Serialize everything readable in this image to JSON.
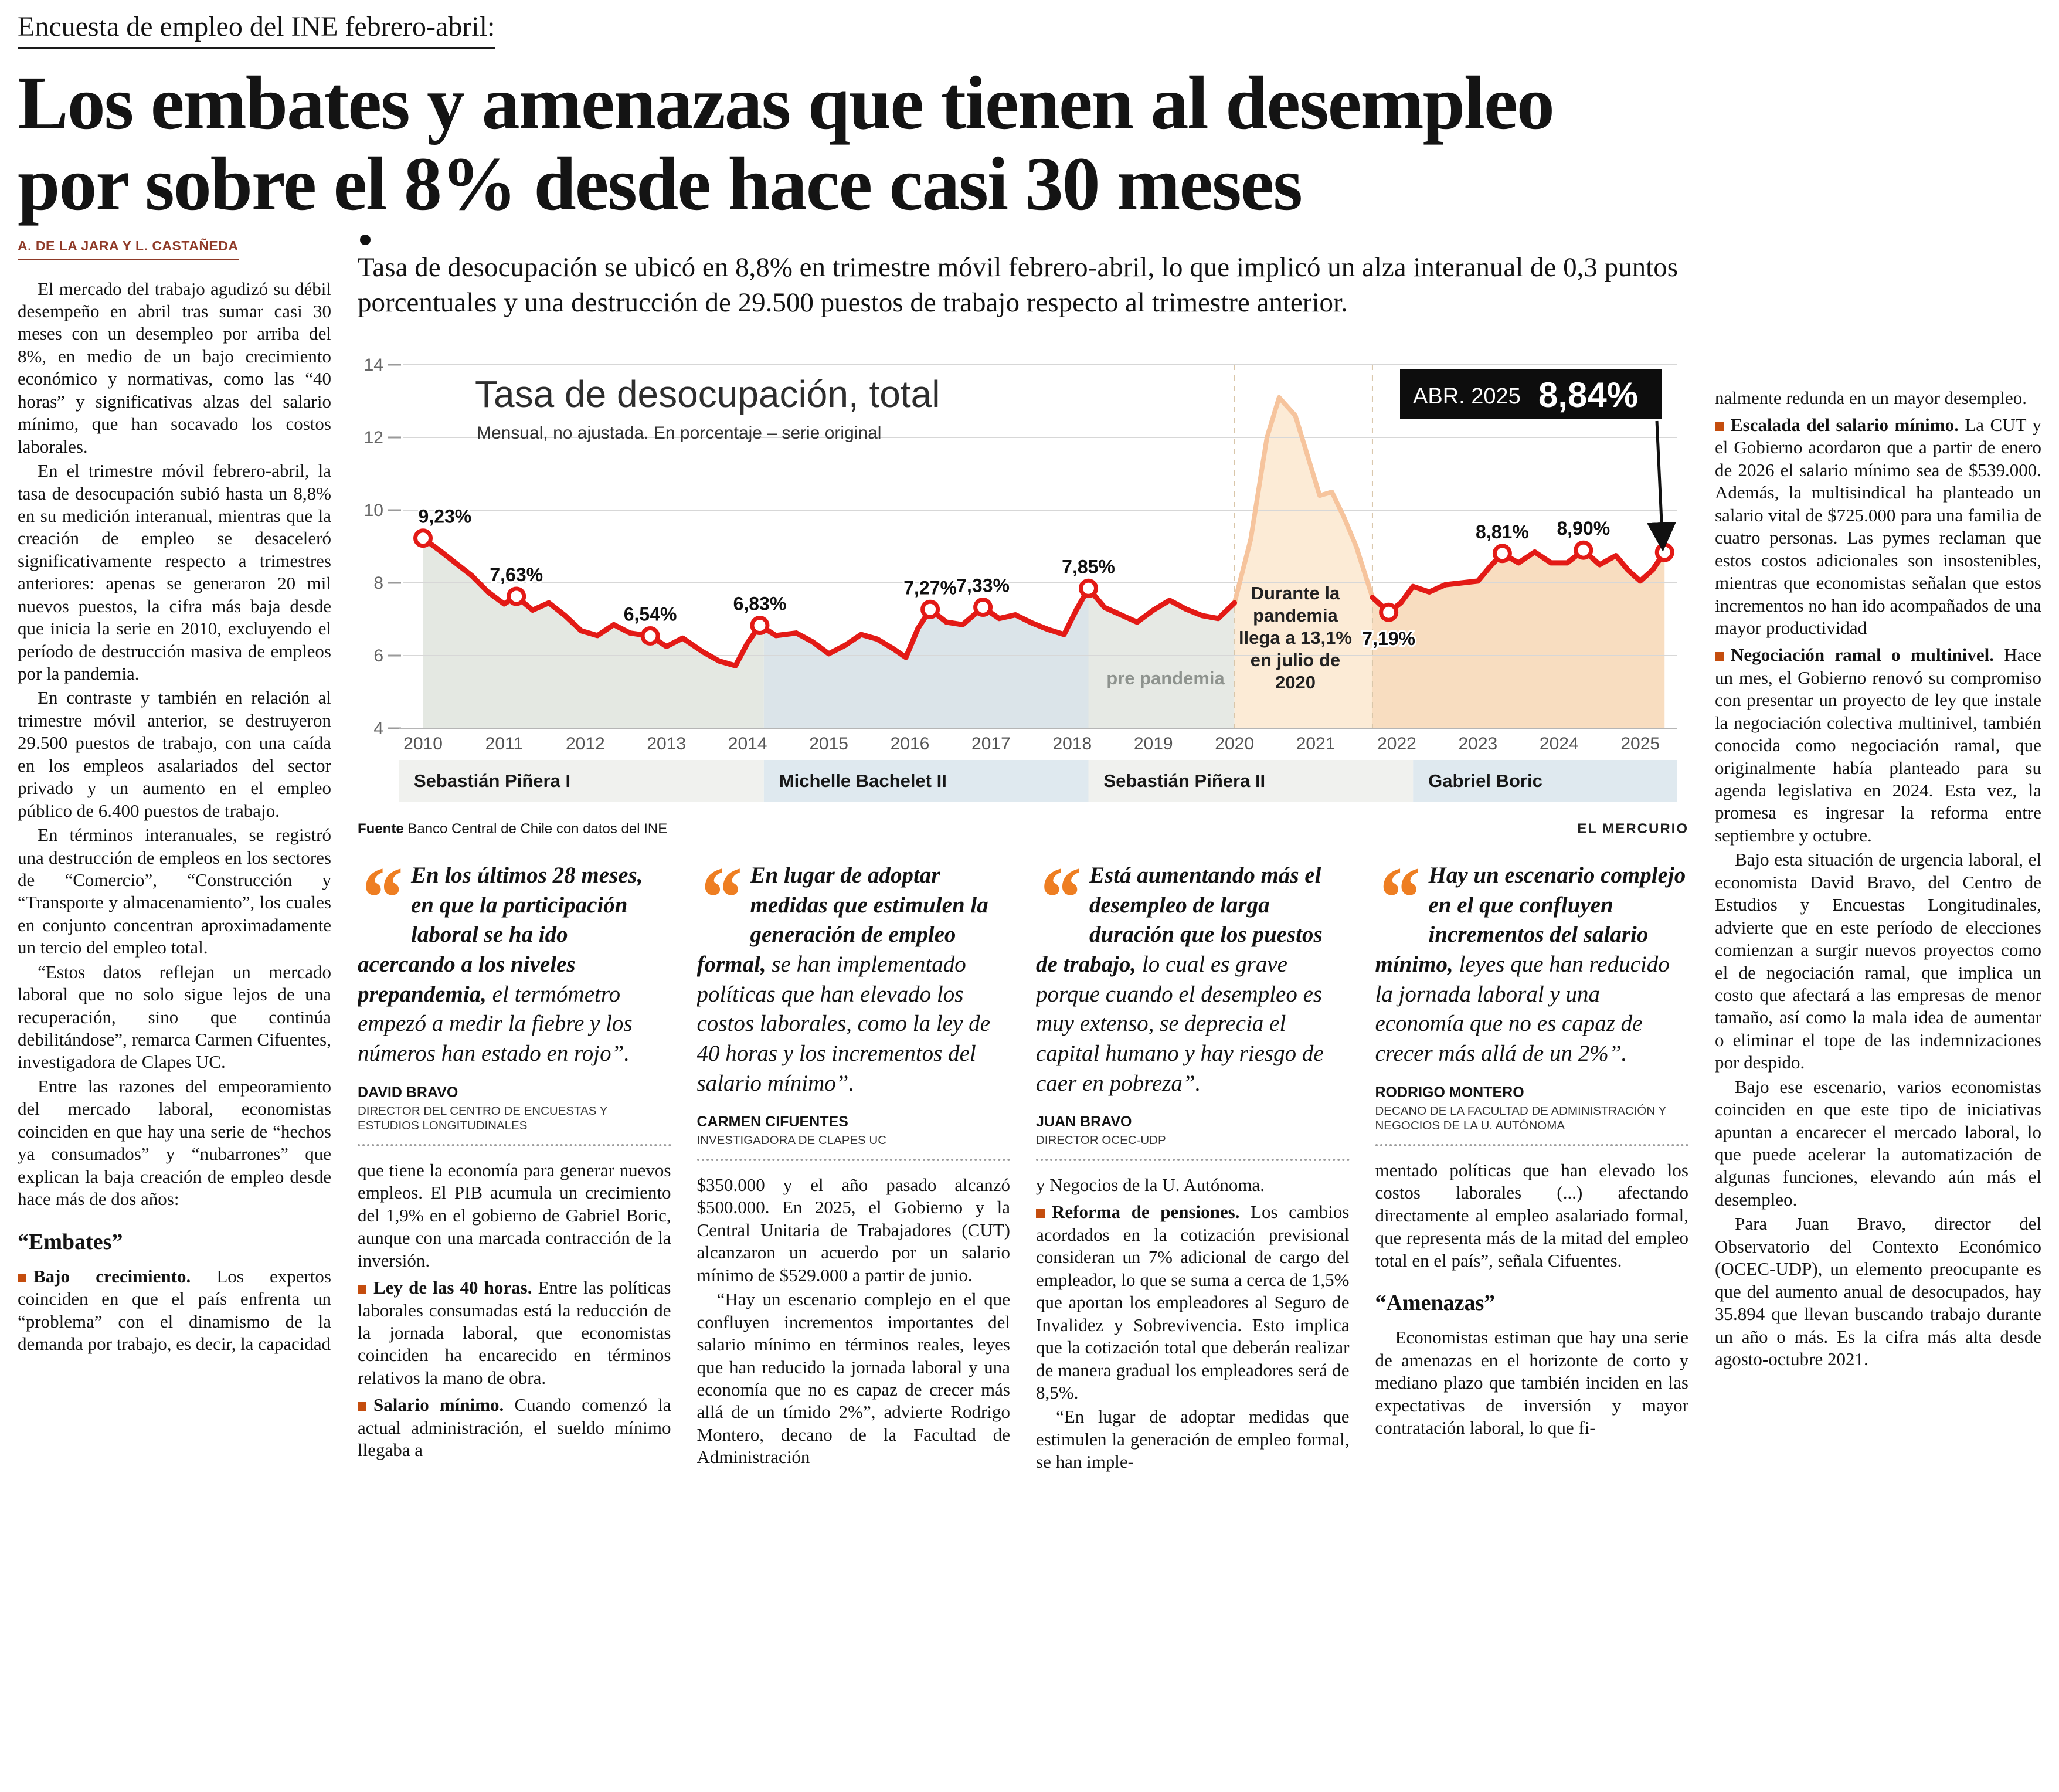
{
  "colors": {
    "accent": "#ee7e22",
    "bullet": "#c44d0e",
    "byline": "#8f3a28"
  },
  "quote_glyph": "“",
  "header": {
    "kicker": "Encuesta de empleo del INE febrero-abril:",
    "headline": "Los embates y amenazas que tienen al desempleo\npor sobre el 8% desde hace casi 30 meses",
    "byline": "A. DE LA JARA Y L. CASTAÑEDA",
    "lead": "Tasa de desocupación se ubicó en 8,8% en trimestre móvil febrero-abril, lo que implicó un alza interanual de 0,3 puntos porcentuales y una destrucción de 29.500 puestos de trabajo respecto al trimestre anterior."
  },
  "left_column": {
    "paragraphs": [
      {
        "t": "p",
        "text": "El mercado del trabajo agudizó su débil desempeño en abril tras sumar casi 30 meses con un desempleo por arriba del 8%, en medio de un bajo crecimiento económico y normativas, como las “40 horas” y significativas alzas del salario mínimo, que han socavado los costos laborales."
      },
      {
        "t": "p",
        "text": "En el trimestre móvil febrero-abril, la tasa de desocupación subió hasta un 8,8% en su medición interanual, mientras que la creación de empleo se desaceleró significativamente respecto a trimestres anteriores: apenas se generaron 20 mil nuevos puestos, la cifra más baja desde que inicia la serie en 2010, excluyendo el período de destrucción masiva de empleos por la pandemia."
      },
      {
        "t": "p",
        "text": "En contraste y también en relación al trimestre móvil anterior, se destruyeron 29.500 puestos de trabajo, con una caída en los empleos asalariados del sector privado y un aumento en el empleo público de 6.400 puestos de trabajo."
      },
      {
        "t": "p",
        "text": "En términos interanuales, se registró una destrucción de empleos en los sectores de “Comercio”, “Construcción y “Transporte y almacenamiento”, los cuales en conjunto concentran aproximadamente un tercio del empleo total."
      },
      {
        "t": "p",
        "text": "“Estos datos reflejan un mercado laboral que no solo sigue lejos de una recuperación, sino que continúa debilitándose”, remarca Carmen Cifuentes, investigadora de Clapes UC."
      },
      {
        "t": "p",
        "text": "Entre las razones del empeoramiento del mercado laboral, economistas coinciden en que hay una serie de “hechos ya consumados” y “nubarrones” que explican la baja creación de empleo desde hace más de dos años:"
      },
      {
        "t": "sub",
        "text": "“Embates”"
      },
      {
        "t": "b",
        "lead": "Bajo crecimiento.",
        "text": "Los expertos coinciden en que el país enfrenta un “problema” con el dinamismo de la demanda por trabajo, es decir, la capacidad"
      }
    ]
  },
  "right_column": {
    "paragraphs": [
      {
        "t": "p",
        "noindent": true,
        "text": "nalmente redunda en un mayor desempleo."
      },
      {
        "t": "b",
        "lead": "Escalada del salario mínimo.",
        "text": "La CUT y el Gobierno acordaron que a partir de enero de 2026 el salario mínimo sea de $539.000. Además, la multisindical ha planteado un salario vital de $725.000 para una familia de cuatro personas. Las pymes reclaman que estos costos adicionales son insostenibles, mientras que economistas señalan que estos incrementos no han ido acompañados de una mayor productividad"
      },
      {
        "t": "b",
        "lead": "Negociación ramal o multinivel.",
        "text": "Hace un mes, el Gobierno renovó su compromiso con presentar un proyecto de ley que instale la negociación colectiva multinivel, también conocida como negociación ramal, que originalmente había planteado para su agenda legislativa en 2024. Esta vez, la promesa es ingresar la reforma entre septiembre y octubre."
      },
      {
        "t": "p",
        "text": "Bajo esta situación de urgencia laboral, el economista David Bravo, del Centro de Estudios y Encuestas Longitudinales, advierte que en este período de elecciones comienzan a surgir nuevos proyectos como el de negociación ramal, que implica un costo que afectará a las empresas de menor tamaño, así como la mala idea de aumentar o eliminar el tope de las indemnizaciones por despido."
      },
      {
        "t": "p",
        "text": "Bajo ese escenario, varios economistas coinciden en que este tipo de iniciativas apuntan a encarecer el mercado laboral, lo que puede acelerar la automatización de algunas funciones, elevando aún más el desempleo."
      },
      {
        "t": "p",
        "text": "Para Juan Bravo, director del Observatorio del Contexto Económico (OCEC-UDP), un elemento preocupante es que del aumento anual de desocupados, hay 35.894 que llevan buscando trabajo durante un año o más. Es la cifra más alta desde agosto-octubre 2021."
      }
    ]
  },
  "quotes": [
    {
      "bold": "En los últimos 28 meses, en que la participación laboral se ha ido acercando a los niveles prepandemia,",
      "rest": "el termómetro empezó a medir la fiebre y los números han estado en rojo”.",
      "name": "DAVID BRAVO",
      "role": "DIRECTOR DEL CENTRO DE ENCUESTAS Y ESTUDIOS LONGITUDINALES",
      "column_text": [
        {
          "t": "p",
          "noindent": true,
          "text": "que tiene la economía para generar nuevos empleos. El PIB acumula un crecimiento del 1,9% en el gobierno de Gabriel Boric, aunque con una marcada contracción de la inversión."
        },
        {
          "t": "b",
          "lead": "Ley de las 40 horas.",
          "text": "Entre las políticas laborales consumadas está la reducción de la jornada laboral, que economistas coinciden ha encarecido en términos relativos la mano de obra."
        },
        {
          "t": "b",
          "lead": "Salario mínimo.",
          "text": "Cuando comenzó la actual administración, el sueldo mínimo llegaba a"
        }
      ]
    },
    {
      "bold": "En lugar de adoptar medidas que estimulen la generación de empleo formal,",
      "rest": "se han implementado políticas que han elevado los costos laborales, como la ley de 40 horas y los incrementos del salario mínimo”.",
      "name": "CARMEN CIFUENTES",
      "role": "INVESTIGADORA DE CLAPES UC",
      "column_text": [
        {
          "t": "p",
          "noindent": true,
          "text": "$350.000 y el año pasado alcanzó $500.000. En 2025, el Gobierno y la Central Unitaria de Trabajadores (CUT) alcanzaron un acuerdo por un salario mínimo de $529.000 a partir de junio."
        },
        {
          "t": "p",
          "text": "“Hay un escenario complejo en el que confluyen incrementos importantes del salario mínimo en términos reales, leyes que han reducido la jornada laboral y una economía que no es capaz de crecer más allá de un tímido 2%”, advierte Rodrigo Montero, decano de la Facultad de Administración"
        }
      ]
    },
    {
      "bold": "Está aumentando más el desempleo de larga duración que los puestos de trabajo,",
      "rest": "lo cual es grave porque cuando el desempleo es muy extenso, se deprecia el capital humano y hay riesgo de caer en pobreza”.",
      "name": "JUAN BRAVO",
      "role": "DIRECTOR OCEC-UDP",
      "column_text": [
        {
          "t": "p",
          "noindent": true,
          "text": "y Negocios de la U. Autónoma."
        },
        {
          "t": "b",
          "lead": "Reforma de pensiones.",
          "text": "Los cambios acordados en la cotización previsional consideran un 7% adicional de cargo del empleador, lo que se suma a cerca de 1,5% que aportan los empleadores al Seguro de Invalidez y Sobrevivencia. Esto implica que la cotización total que deberán realizar de manera gradual los empleadores será de 8,5%."
        },
        {
          "t": "p",
          "text": "“En lugar de adoptar medidas que estimulen la generación de empleo formal, se han imple-"
        }
      ]
    },
    {
      "bold": "Hay un escenario complejo en el que confluyen incrementos del salario mínimo,",
      "rest": "leyes que han reducido la jornada laboral y una economía que no es capaz de crecer más allá de un 2%”.",
      "name": "RODRIGO MONTERO",
      "role": "DECANO DE LA FACULTAD DE ADMINISTRACIÓN Y NEGOCIOS DE LA U. AUTÓNOMA",
      "column_text": [
        {
          "t": "p",
          "noindent": true,
          "text": "mentado políticas que han elevado los costos laborales (...) afectando directamente al empleo asalariado formal, que representa más de la mitad del empleo total en el país”, señala Cifuentes."
        },
        {
          "t": "sub",
          "text": "“Amenazas”"
        },
        {
          "t": "p",
          "text": "Economistas estiman que hay una serie de amenazas en el horizonte de corto y mediano plazo que también inciden en las expectativas de inversión y mayor contratación laboral, lo que fi-"
        }
      ]
    }
  ],
  "chart_data": {
    "type": "line",
    "title": "Tasa de desocupación, total",
    "subtitle": "Mensual, no ajustada. En porcentaje – serie original",
    "source_label": "Fuente",
    "source": " Banco Central de Chile con datos del INE",
    "credit": "EL MERCURIO",
    "ylim": [
      4,
      14
    ],
    "yticks": [
      4,
      6,
      8,
      10,
      12,
      14
    ],
    "xlim": [
      2009.7,
      2025.45
    ],
    "xticks": [
      2010,
      2011,
      2012,
      2013,
      2014,
      2015,
      2016,
      2017,
      2018,
      2019,
      2020,
      2021,
      2022,
      2023,
      2024,
      2025
    ],
    "line_color": "#e31a16",
    "pandemic_line_color": "#f6c49d",
    "badge": {
      "label": "ABR. 2025",
      "value": "8,84%"
    },
    "pandemic_note": [
      "Durante la",
      "pandemia",
      "llega a 13,1%",
      "en julio de",
      "2020"
    ],
    "pandemic_note_x": 2020.75,
    "pandemic_note_y": 420,
    "pre_pandemic_label": "pre pandemia",
    "pre_pandemic_x": 2019.15,
    "pre_pandemic_y": 565,
    "pandemic_window": {
      "start": 2020.0,
      "end": 2021.7
    },
    "area_fills": [
      {
        "start": 2009.7,
        "end": 2014.2,
        "color": "#e4e8e2"
      },
      {
        "start": 2014.2,
        "end": 2018.2,
        "color": "#dbe4e9"
      },
      {
        "start": 2018.2,
        "end": 2020.0,
        "color": "#e6e9e4"
      },
      {
        "start": 2020.0,
        "end": 2021.7,
        "color": "#fcebd6"
      },
      {
        "start": 2021.7,
        "end": 2025.45,
        "color": "#f8ddc0"
      }
    ],
    "periods": [
      {
        "name": "Sebastián Piñera I",
        "start": 2009.7,
        "end": 2014.2,
        "band": "#f0f1ee"
      },
      {
        "name": "Michelle Bachelet II",
        "start": 2014.2,
        "end": 2018.2,
        "band": "#dfe9ef"
      },
      {
        "name": "Sebastián Piñera II",
        "start": 2018.2,
        "end": 2022.2,
        "band": "#f0f1ee"
      },
      {
        "name": "Gabriel Boric",
        "start": 2022.2,
        "end": 2025.45,
        "band": "#dfe9ef"
      }
    ],
    "series": [
      [
        2010.0,
        9.23
      ],
      [
        2010.2,
        8.9
      ],
      [
        2010.4,
        8.55
      ],
      [
        2010.6,
        8.2
      ],
      [
        2010.8,
        7.75
      ],
      [
        2011.0,
        7.42
      ],
      [
        2011.15,
        7.63
      ],
      [
        2011.35,
        7.25
      ],
      [
        2011.55,
        7.45
      ],
      [
        2011.75,
        7.1
      ],
      [
        2011.95,
        6.68
      ],
      [
        2012.15,
        6.55
      ],
      [
        2012.35,
        6.85
      ],
      [
        2012.55,
        6.62
      ],
      [
        2012.8,
        6.54
      ],
      [
        2013.0,
        6.25
      ],
      [
        2013.2,
        6.48
      ],
      [
        2013.45,
        6.1
      ],
      [
        2013.65,
        5.85
      ],
      [
        2013.85,
        5.72
      ],
      [
        2014.0,
        6.35
      ],
      [
        2014.15,
        6.83
      ],
      [
        2014.35,
        6.55
      ],
      [
        2014.6,
        6.62
      ],
      [
        2014.8,
        6.38
      ],
      [
        2015.0,
        6.05
      ],
      [
        2015.2,
        6.28
      ],
      [
        2015.4,
        6.58
      ],
      [
        2015.6,
        6.45
      ],
      [
        2015.8,
        6.18
      ],
      [
        2015.95,
        5.95
      ],
      [
        2016.1,
        6.75
      ],
      [
        2016.25,
        7.27
      ],
      [
        2016.45,
        6.92
      ],
      [
        2016.65,
        6.85
      ],
      [
        2016.9,
        7.33
      ],
      [
        2017.1,
        7.02
      ],
      [
        2017.3,
        7.12
      ],
      [
        2017.5,
        6.9
      ],
      [
        2017.7,
        6.72
      ],
      [
        2017.9,
        6.58
      ],
      [
        2018.05,
        7.25
      ],
      [
        2018.2,
        7.85
      ],
      [
        2018.4,
        7.32
      ],
      [
        2018.6,
        7.12
      ],
      [
        2018.8,
        6.92
      ],
      [
        2019.0,
        7.25
      ],
      [
        2019.2,
        7.52
      ],
      [
        2019.4,
        7.28
      ],
      [
        2019.6,
        7.1
      ],
      [
        2019.8,
        7.02
      ],
      [
        2020.0,
        7.45
      ],
      [
        2020.2,
        9.2
      ],
      [
        2020.4,
        12.0
      ],
      [
        2020.55,
        13.1
      ],
      [
        2020.75,
        12.6
      ],
      [
        2020.9,
        11.5
      ],
      [
        2021.05,
        10.4
      ],
      [
        2021.2,
        10.5
      ],
      [
        2021.35,
        9.8
      ],
      [
        2021.5,
        9.0
      ],
      [
        2021.7,
        7.6
      ],
      [
        2021.9,
        7.19
      ],
      [
        2022.05,
        7.45
      ],
      [
        2022.2,
        7.9
      ],
      [
        2022.4,
        7.75
      ],
      [
        2022.6,
        7.95
      ],
      [
        2022.8,
        8.0
      ],
      [
        2023.0,
        8.05
      ],
      [
        2023.15,
        8.45
      ],
      [
        2023.3,
        8.81
      ],
      [
        2023.5,
        8.55
      ],
      [
        2023.7,
        8.85
      ],
      [
        2023.9,
        8.55
      ],
      [
        2024.1,
        8.55
      ],
      [
        2024.3,
        8.9
      ],
      [
        2024.5,
        8.5
      ],
      [
        2024.7,
        8.75
      ],
      [
        2024.85,
        8.35
      ],
      [
        2025.0,
        8.05
      ],
      [
        2025.15,
        8.35
      ],
      [
        2025.3,
        8.84
      ]
    ],
    "points_labeled": [
      {
        "x": 2010.0,
        "v": 9.23,
        "label": "9,23%",
        "pos": "above",
        "anchor": "start",
        "dx": -8
      },
      {
        "x": 2011.15,
        "v": 7.63,
        "label": "7,63%",
        "pos": "above"
      },
      {
        "x": 2012.8,
        "v": 6.54,
        "label": "6,54%",
        "pos": "above"
      },
      {
        "x": 2014.15,
        "v": 6.83,
        "label": "6,83%",
        "pos": "above"
      },
      {
        "x": 2016.25,
        "v": 7.27,
        "label": "7,27%",
        "pos": "above"
      },
      {
        "x": 2016.9,
        "v": 7.33,
        "label": "7,33%",
        "pos": "above"
      },
      {
        "x": 2018.2,
        "v": 7.85,
        "label": "7,85%",
        "pos": "above"
      },
      {
        "x": 2021.9,
        "v": 7.19,
        "label": "7,19%",
        "pos": "below"
      },
      {
        "x": 2023.3,
        "v": 8.81,
        "label": "8,81%",
        "pos": "above"
      },
      {
        "x": 2024.3,
        "v": 8.9,
        "label": "8,90%",
        "pos": "above"
      },
      {
        "x": 2025.3,
        "v": 8.84,
        "label": "",
        "pos": "none"
      }
    ]
  }
}
